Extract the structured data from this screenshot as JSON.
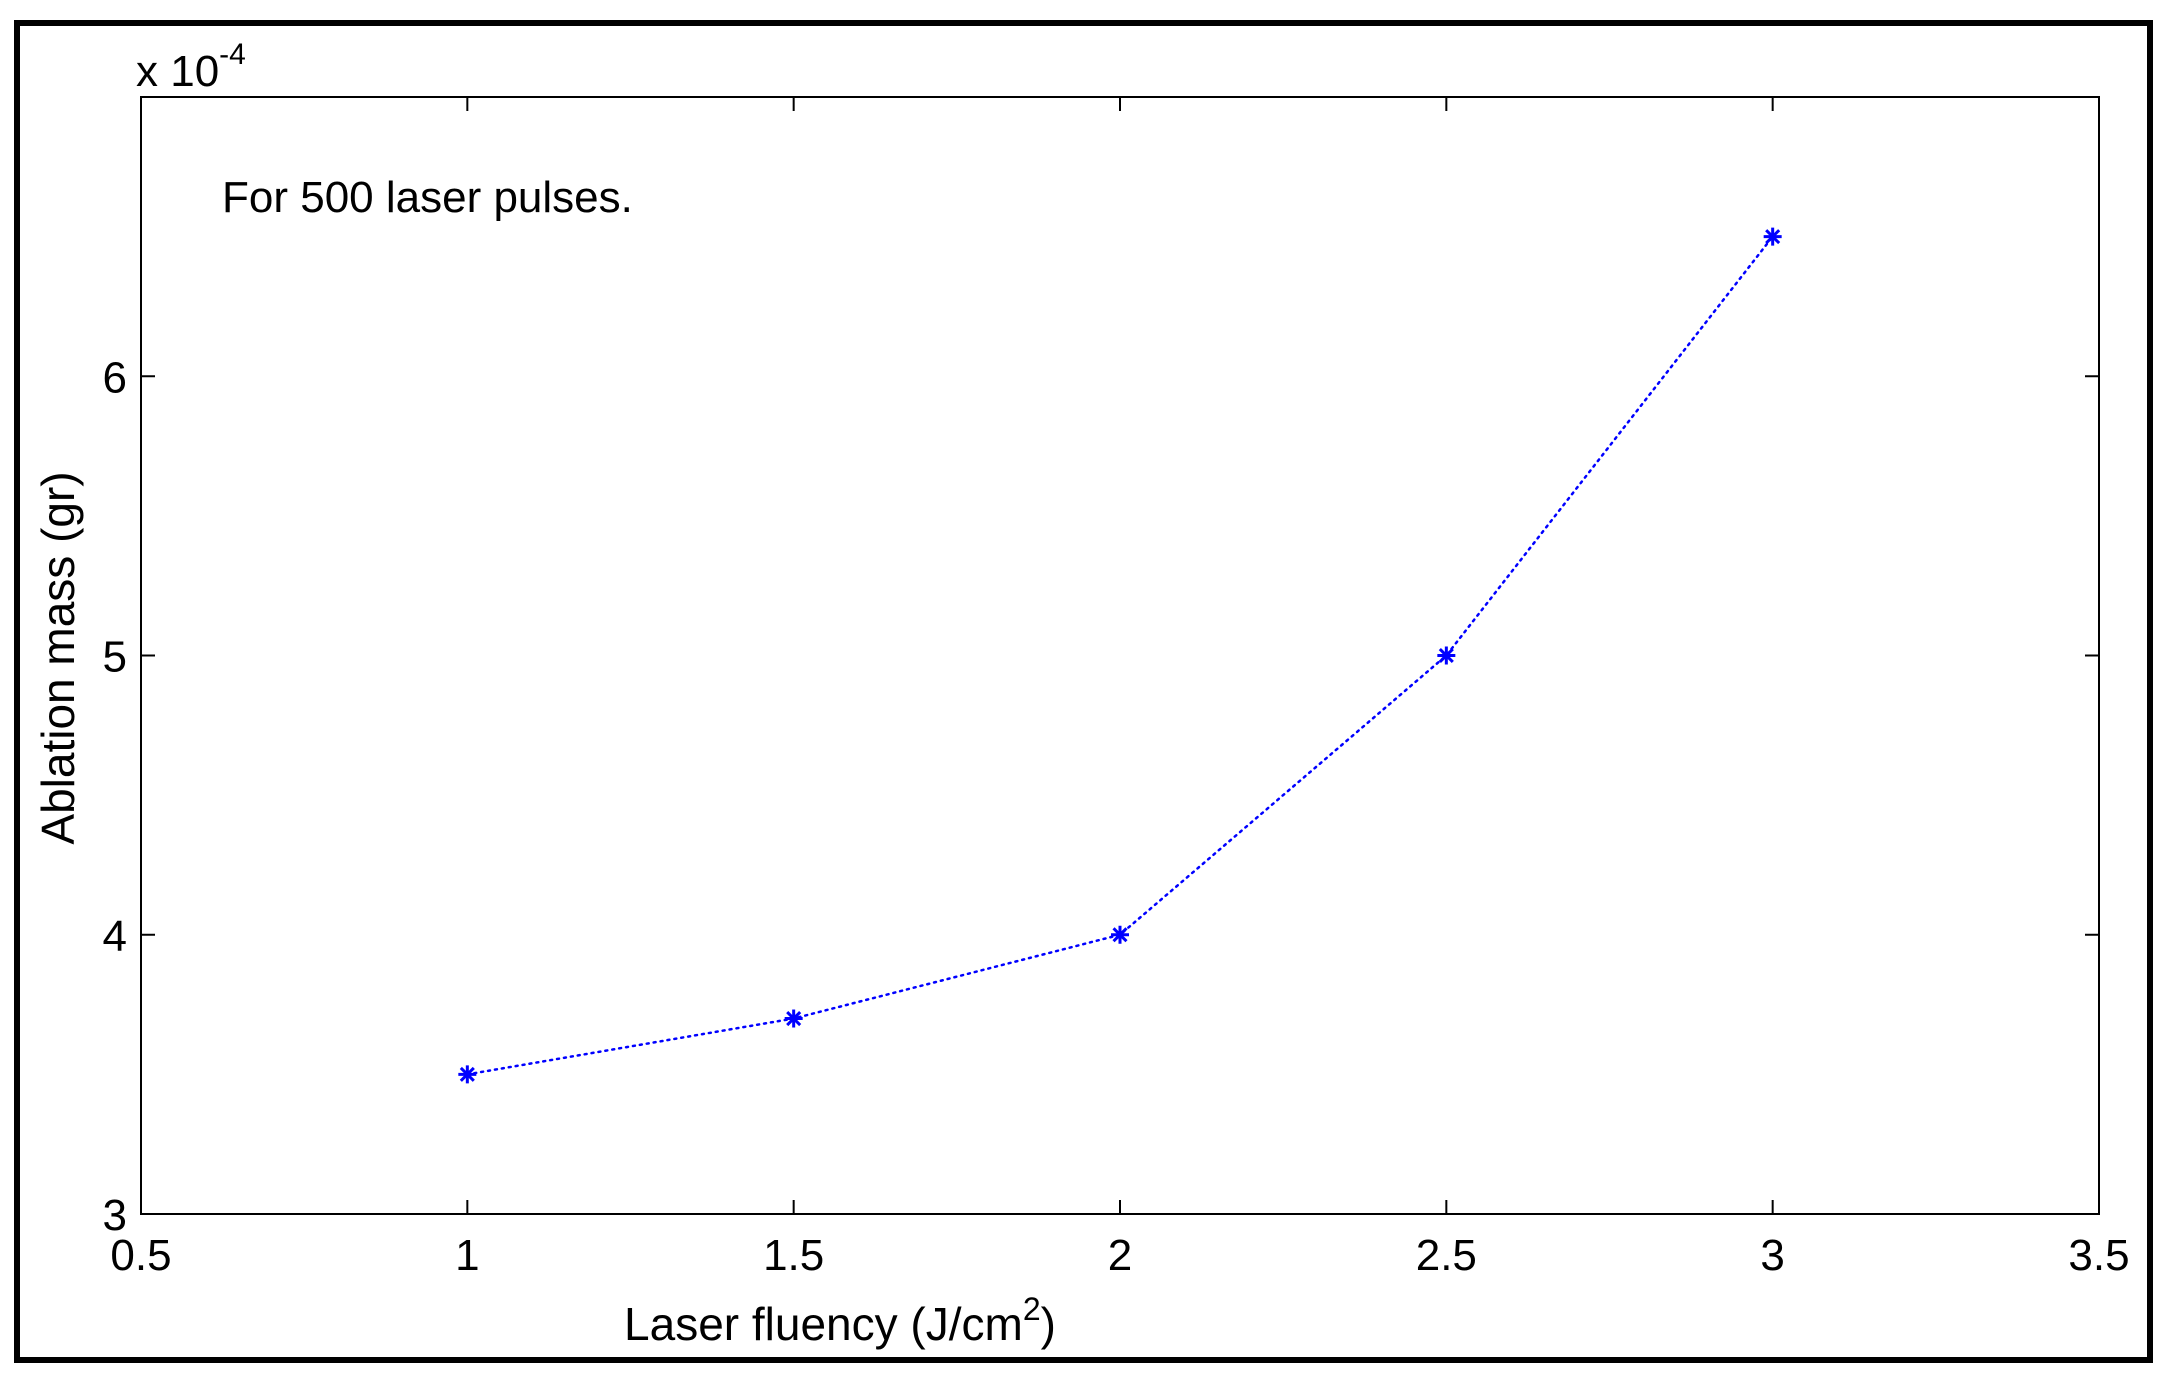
{
  "chart_data": {
    "type": "line",
    "title": "",
    "xlabel_main": "Laser fluency (J/cm",
    "xlabel_sup": "2",
    "xlabel_tail": ")",
    "ylabel": "Ablation mass (gr)",
    "annotation": "For 500 laser pulses.",
    "y_multiplier_base": "x 10",
    "y_multiplier_exp": "-4",
    "xlim": [
      0.5,
      3.5
    ],
    "ylim": [
      3,
      7
    ],
    "x_ticks": [
      0.5,
      1,
      1.5,
      2,
      2.5,
      3,
      3.5
    ],
    "x_tick_labels": [
      "0.5",
      "1",
      "1.5",
      "2",
      "2.5",
      "3",
      "3.5"
    ],
    "y_ticks": [
      3,
      4,
      5,
      6
    ],
    "y_tick_labels": [
      "3",
      "4",
      "5",
      "6"
    ],
    "grid": false,
    "series": [
      {
        "x": [
          1,
          1.5,
          2,
          2.5,
          3
        ],
        "y": [
          3.5,
          3.7,
          4.0,
          5.0,
          6.5
        ],
        "color": "#0000ff",
        "marker": "asterisk",
        "line_style": "dotted"
      }
    ]
  }
}
